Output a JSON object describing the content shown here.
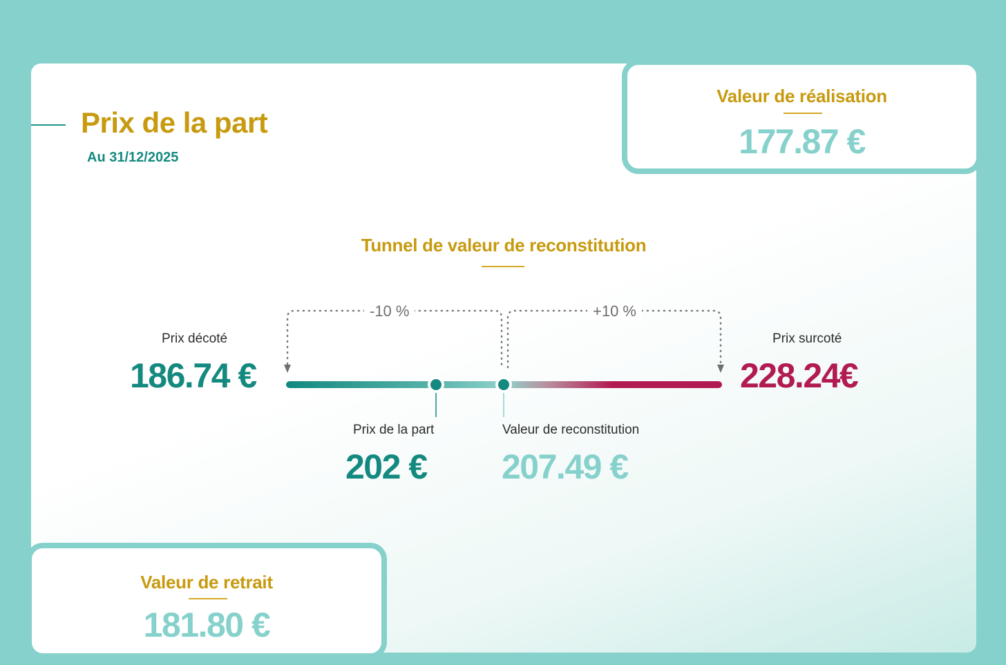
{
  "header": {
    "title": "Prix de la part",
    "date": "Au 31/12/2025"
  },
  "realisation": {
    "label": "Valeur de réalisation",
    "value": "177.87 €"
  },
  "retrait": {
    "label": "Valeur de retrait",
    "value": "181.80 €"
  },
  "tunnel": {
    "title": "Tunnel de valeur de reconstitution",
    "minus_pct": "-10 %",
    "plus_pct": "+10 %",
    "prix_decote": {
      "label": "Prix décoté",
      "value": "186.74 €"
    },
    "prix_surcote": {
      "label": "Prix surcoté",
      "value": "228.24€"
    },
    "prix_part": {
      "label": "Prix de la part",
      "value": "202 €"
    },
    "valeur_reconstitution": {
      "label": "Valeur de reconstitution",
      "value": "207.49 €"
    }
  },
  "colors": {
    "background": "#86d1cb",
    "gold": "#c79a0f",
    "teal_dark": "#14897f",
    "teal_light": "#86d1cb",
    "crimson": "#b21b52"
  }
}
